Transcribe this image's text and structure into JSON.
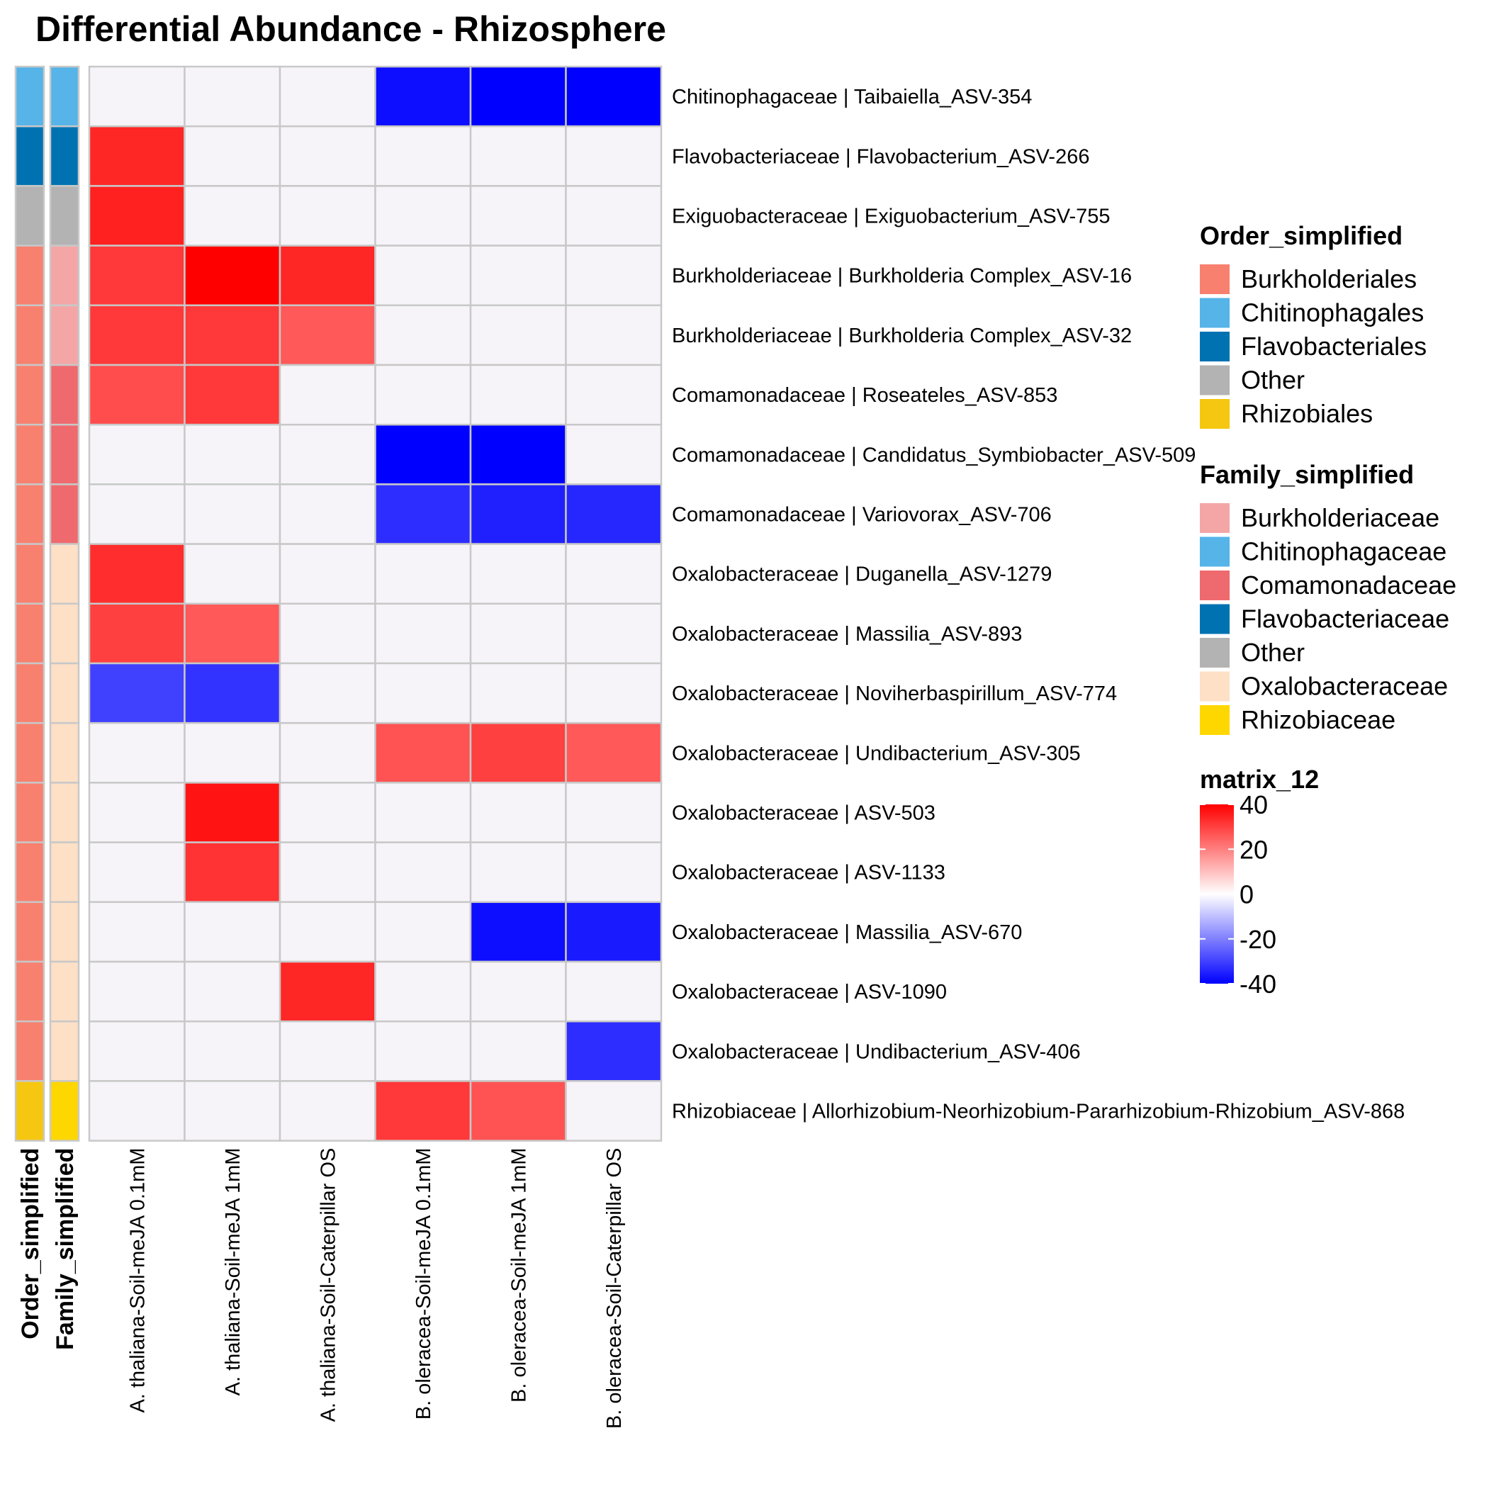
{
  "chart_data": {
    "type": "heatmap",
    "title": "Differential Abundance - Rhizosphere",
    "columns": [
      "A. thaliana-Soil-meJA 0.1mM",
      "A. thaliana-Soil-meJA 1mM",
      "A. thaliana-Soil-Caterpillar OS",
      "B. oleracea-Soil-meJA 0.1mM",
      "B. oleracea-Soil-meJA 1mM",
      "B. oleracea-Soil-Caterpillar OS"
    ],
    "rows": [
      "Chitinophagaceae | Taibaiella_ASV-354",
      "Flavobacteriaceae | Flavobacterium_ASV-266",
      "Exiguobacteraceae | Exiguobacterium_ASV-755",
      "Burkholderiaceae | Burkholderia Complex_ASV-16",
      "Burkholderiaceae | Burkholderia Complex_ASV-32",
      "Comamonadaceae | Roseateles_ASV-853",
      "Comamonadaceae | Candidatus_Symbiobacter_ASV-509",
      "Comamonadaceae | Variovorax_ASV-706",
      "Oxalobacteraceae | Duganella_ASV-1279",
      "Oxalobacteraceae | Massilia_ASV-893",
      "Oxalobacteraceae | Noviherbaspirillum_ASV-774",
      "Oxalobacteraceae | Undibacterium_ASV-305",
      "Oxalobacteraceae | ASV-503",
      "Oxalobacteraceae | ASV-1133",
      "Oxalobacteraceae | Massilia_ASV-670",
      "Oxalobacteraceae | ASV-1090",
      "Oxalobacteraceae | Undibacterium_ASV-406",
      "Rhizobiaceae | Allorhizobium-Neorhizobium-Pararhizobium-Rhizobium_ASV-868"
    ],
    "values": [
      [
        0,
        0,
        0,
        -38,
        -40,
        -40
      ],
      [
        34,
        0,
        0,
        0,
        0,
        0
      ],
      [
        35,
        0,
        0,
        0,
        0,
        0
      ],
      [
        31,
        40,
        34,
        0,
        0,
        0
      ],
      [
        31,
        31,
        26,
        0,
        0,
        0
      ],
      [
        28,
        31,
        0,
        0,
        0,
        0
      ],
      [
        0,
        0,
        0,
        -40,
        -40,
        0
      ],
      [
        0,
        0,
        0,
        -33,
        -35,
        -34
      ],
      [
        33,
        0,
        0,
        0,
        0,
        0
      ],
      [
        30,
        26,
        0,
        0,
        0,
        0
      ],
      [
        -30,
        -32,
        0,
        0,
        0,
        0
      ],
      [
        0,
        0,
        0,
        27,
        30,
        26
      ],
      [
        0,
        37,
        0,
        0,
        0,
        0
      ],
      [
        0,
        32,
        0,
        0,
        0,
        0
      ],
      [
        0,
        0,
        0,
        0,
        -38,
        -36
      ],
      [
        0,
        0,
        34,
        0,
        0,
        0
      ],
      [
        0,
        0,
        0,
        0,
        0,
        -33
      ],
      [
        0,
        0,
        0,
        31,
        27,
        0
      ]
    ],
    "row_annotations": {
      "Order_simplified": [
        "Chitinophagales",
        "Flavobacteriales",
        "Other",
        "Burkholderiales",
        "Burkholderiales",
        "Burkholderiales",
        "Burkholderiales",
        "Burkholderiales",
        "Burkholderiales",
        "Burkholderiales",
        "Burkholderiales",
        "Burkholderiales",
        "Burkholderiales",
        "Burkholderiales",
        "Burkholderiales",
        "Burkholderiales",
        "Burkholderiales",
        "Rhizobiales"
      ],
      "Family_simplified": [
        "Chitinophagaceae",
        "Flavobacteriaceae",
        "Other",
        "Burkholderiaceae",
        "Burkholderiaceae",
        "Comamonadaceae",
        "Comamonadaceae",
        "Comamonadaceae",
        "Oxalobacteraceae",
        "Oxalobacteraceae",
        "Oxalobacteraceae",
        "Oxalobacteraceae",
        "Oxalobacteraceae",
        "Oxalobacteraceae",
        "Oxalobacteraceae",
        "Oxalobacteraceae",
        "Oxalobacteraceae",
        "Rhizobiaceae"
      ]
    },
    "annotation_tracks": [
      "Order_simplified",
      "Family_simplified"
    ],
    "legends": [
      {
        "title": "Order_simplified",
        "items": [
          {
            "label": "Burkholderiales",
            "color": "#F8806F"
          },
          {
            "label": "Chitinophagales",
            "color": "#56B4E9"
          },
          {
            "label": "Flavobacteriales",
            "color": "#0072B2"
          },
          {
            "label": "Other",
            "color": "#B3B3B3"
          },
          {
            "label": "Rhizobiales",
            "color": "#F5C710"
          }
        ]
      },
      {
        "title": "Family_simplified",
        "items": [
          {
            "label": "Burkholderiaceae",
            "color": "#F4A6A6"
          },
          {
            "label": "Chitinophagaceae",
            "color": "#56B4E9"
          },
          {
            "label": "Comamonadaceae",
            "color": "#EF6A6E"
          },
          {
            "label": "Flavobacteriaceae",
            "color": "#0072B2"
          },
          {
            "label": "Other",
            "color": "#B3B3B3"
          },
          {
            "label": "Oxalobacteraceae",
            "color": "#FDE0C6"
          },
          {
            "label": "Rhizobiaceae",
            "color": "#FFD700"
          }
        ]
      }
    ],
    "colorbar": {
      "title": "matrix_12",
      "ticks": [
        40,
        20,
        0,
        -20,
        -40
      ],
      "range": [
        -40,
        40
      ],
      "colors": {
        "high": "#FF0000",
        "mid": "#FFFFFF",
        "low": "#0000FF",
        "zero_cell": "#F7F4F9"
      }
    }
  }
}
